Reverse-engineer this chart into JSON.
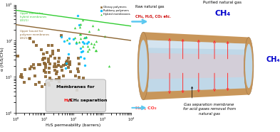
{
  "scatter": {
    "xlabel": "H₂S permeability (barrers)",
    "ylabel": "α (H₂S/CH₄)",
    "glossy_color": "#8B6430",
    "rubbery_color": "#00BFFF",
    "hybrid_color": "#32CD32",
    "upper_bound_polymer_color": "#8B6430",
    "upper_bound_hybrid_color": "#32CD32",
    "label_glossy": "Glossy polymers",
    "label_rubbery": "Rubbery polymers",
    "label_hybrid": "Hybrid membranes",
    "upper_bound_polymer_label": "Upper bound for\npolymer membranes\n(2021)",
    "upper_bound_hybrid_label": "Upper bound for\nhybrid membranes\n(2021)"
  },
  "membrane": {
    "purified_label": "Purified natural gas",
    "ch4_top": "CH₄",
    "raw_label_1": "Raw natural gas",
    "raw_label_2": "CH₄, H₂S, CO₂ etc.",
    "ch4_right": "CH₄",
    "h2s_co2": "H₂S, CO₂",
    "caption": "Gas separation membrane\nfor acid gases removal from\nnatural gas",
    "blue_color": "#5BC8F0",
    "red_color": "#FF3333",
    "tube_outer_color": "#C8965A",
    "tube_inner_color": "#C0D8E8",
    "tube_highlight": "#E8F0F8"
  }
}
